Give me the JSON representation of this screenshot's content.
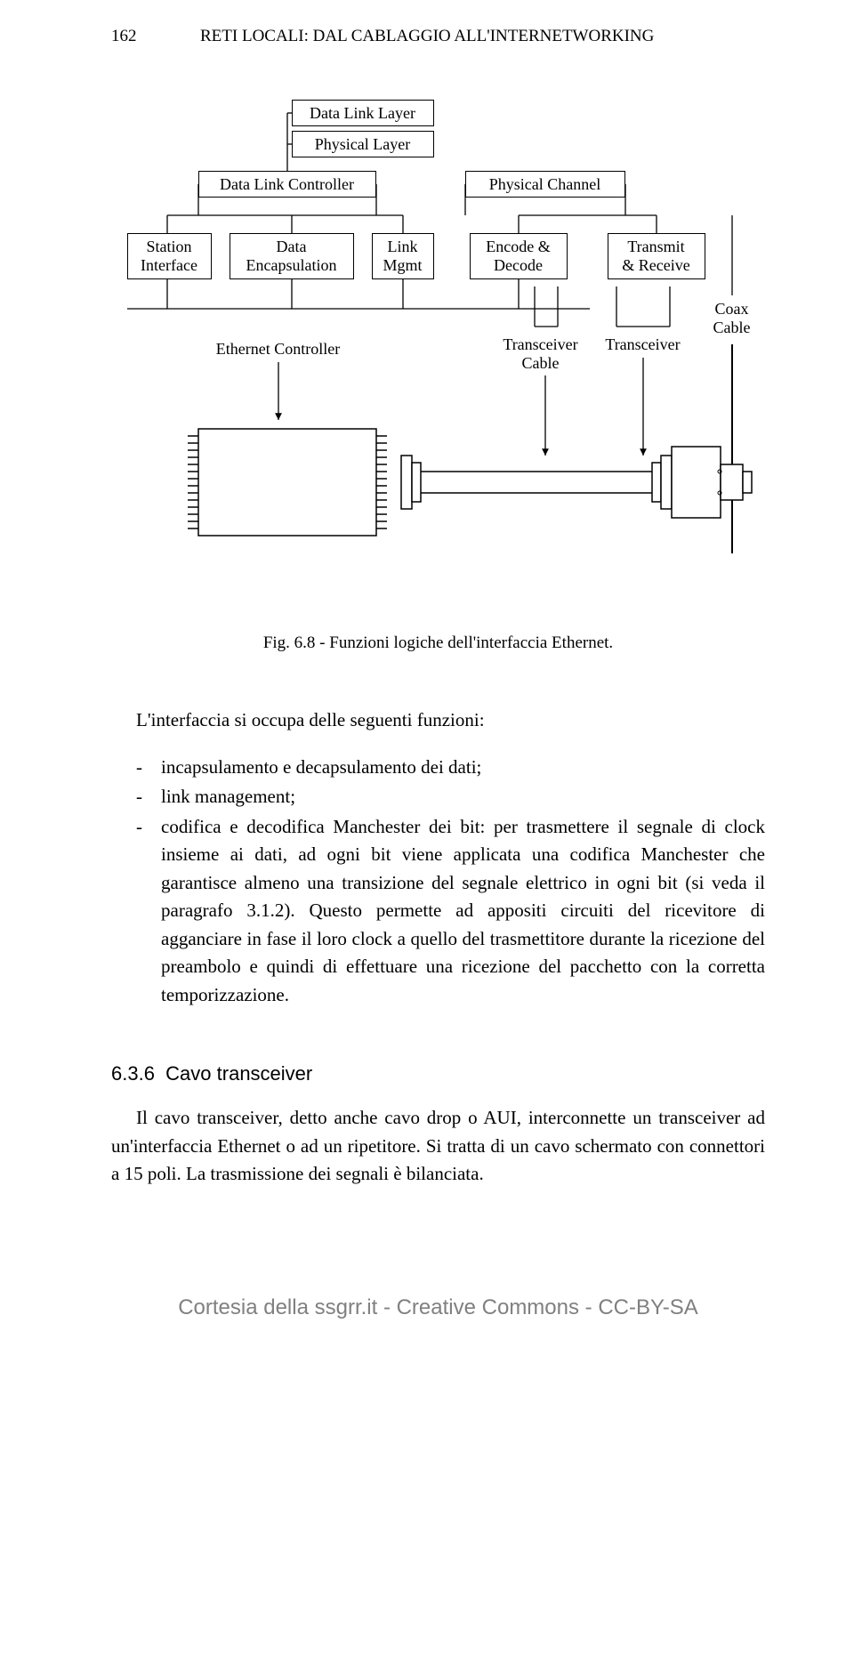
{
  "header": {
    "page_number": "162",
    "title_smallcaps": "RETI LOCALI:",
    "title_rest": " DAL CABLAGGIO ALL'INTERNETWORKING"
  },
  "diagram": {
    "boxes": {
      "data_link_layer": "Data Link Layer",
      "physical_layer": "Physical Layer",
      "data_link_controller": "Data Link Controller",
      "physical_channel": "Physical Channel",
      "station_interface": "Station\nInterface",
      "data_encapsulation": "Data\nEncapsulation",
      "link_mgmt": "Link\nMgmt",
      "encode_decode": "Encode &\nDecode",
      "transmit_receive": "Transmit\n& Receive"
    },
    "labels": {
      "ethernet_controller": "Ethernet Controller",
      "transceiver_cable": "Transceiver\nCable",
      "transceiver": "Transceiver",
      "coax_cable": "Coax\nCable"
    },
    "colors": {
      "stroke": "#000000",
      "background": "#ffffff"
    }
  },
  "caption": "Fig. 6.8 - Funzioni logiche dell'interfaccia Ethernet.",
  "body": {
    "intro": "L'interfaccia si occupa delle seguenti funzioni:",
    "bullets": [
      "incapsulamento e decapsulamento dei dati;",
      "link management;",
      "codifica e decodifica Manchester dei bit: per trasmettere il segnale di clock insieme ai dati, ad ogni bit viene applicata una codifica Manchester che garantisce almeno una transizione del segnale elettrico in ogni bit (si veda il paragrafo 3.1.2). Questo permette ad appositi circuiti del ricevitore di agganciare in fase il loro clock a quello del trasmettitore durante la ricezione del preambolo e quindi di effettuare una ricezione del pacchetto con la corretta temporizzazione."
    ]
  },
  "section": {
    "number": "6.3.6",
    "title": "Cavo transceiver",
    "paragraph": "Il cavo transceiver, detto anche cavo drop o AUI, interconnette un transceiver ad un'interfaccia Ethernet o ad un ripetitore. Si tratta di un cavo schermato con connettori a 15 poli. La trasmissione dei segnali è bilanciata."
  },
  "footer": "Cortesia della ssgrr.it - Creative Commons - CC-BY-SA"
}
